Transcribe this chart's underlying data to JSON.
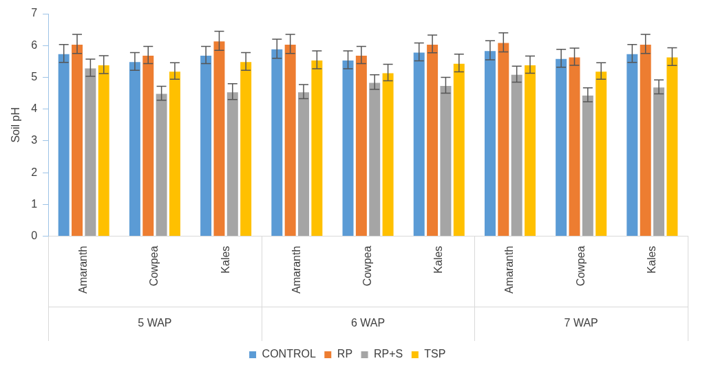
{
  "chart_data": {
    "type": "bar",
    "ylabel": "Soil pH",
    "categories": [
      "Amaranth",
      "Cowpea",
      "Kales",
      "Amaranth",
      "Cowpea",
      "Kales",
      "Amaranth",
      "Cowpea",
      "Kales"
    ],
    "annotations": [
      "5 WAP",
      "6 WAP",
      "7 WAP"
    ],
    "series": [
      {
        "name": "CONTROL",
        "color": "#5b9bd5",
        "values": [
          5.75,
          5.5,
          5.7,
          5.9,
          5.55,
          5.8,
          5.85,
          5.6,
          5.75
        ],
        "errors": [
          0.28,
          0.28,
          0.27,
          0.3,
          0.28,
          0.28,
          0.3,
          0.28,
          0.28
        ]
      },
      {
        "name": "RP",
        "color": "#ed7d31",
        "values": [
          6.05,
          5.7,
          6.15,
          6.05,
          5.7,
          6.05,
          6.1,
          5.65,
          6.05
        ],
        "errors": [
          0.3,
          0.27,
          0.3,
          0.3,
          0.27,
          0.28,
          0.3,
          0.27,
          0.3
        ]
      },
      {
        "name": "RP+S",
        "color": "#a5a5a5",
        "values": [
          5.3,
          4.5,
          4.55,
          4.55,
          4.85,
          4.75,
          5.1,
          4.45,
          4.7
        ],
        "errors": [
          0.27,
          0.22,
          0.25,
          0.22,
          0.23,
          0.25,
          0.25,
          0.22,
          0.22
        ]
      },
      {
        "name": "TSP",
        "color": "#ffc000",
        "values": [
          5.4,
          5.2,
          5.5,
          5.55,
          5.15,
          5.45,
          5.4,
          5.2,
          5.65
        ],
        "errors": [
          0.28,
          0.26,
          0.28,
          0.28,
          0.26,
          0.28,
          0.27,
          0.26,
          0.28
        ]
      }
    ],
    "ylim": [
      0,
      7
    ],
    "yticks": [
      0,
      1,
      2,
      3,
      4,
      5,
      6,
      7
    ],
    "grid": false,
    "legend": "bottom"
  }
}
